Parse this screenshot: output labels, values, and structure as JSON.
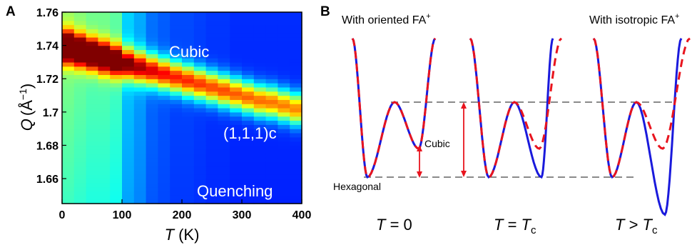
{
  "panel_a": {
    "label": "A",
    "ylabel_italic": "Q",
    "ylabel_unit": "(Å",
    "ylabel_sup": "−1",
    "ylabel_close": ")",
    "xlabel_italic": "T",
    "xlabel_unit": "(K)",
    "text_cubic": "Cubic",
    "text_peak": "(1,1,1)c",
    "text_quenching": "Quenching"
  },
  "panel_b": {
    "label": "B",
    "title_left": "With oriented FA",
    "title_left_sup": "+",
    "title_right": "With isotropic FA",
    "title_right_sup": "+",
    "label_cubic": "Cubic",
    "label_hexagonal": "Hexagonal",
    "cond1_var": "T",
    "cond1_rest": " = 0",
    "cond2_var": "T",
    "cond2_op": " = ",
    "cond2_sym": "T",
    "cond2_sub": "c",
    "cond3_var": "T",
    "cond3_op": " > ",
    "cond3_sym": "T",
    "cond3_sub": "c"
  },
  "colors": {
    "blue_curve": "#1a1adc",
    "red_curve": "#e8141e",
    "arrow": "#e8141e",
    "heatmap_background": "#0a1a9c"
  },
  "chart_data": [
    {
      "type": "heatmap",
      "panel": "A",
      "xlabel": "T (K)",
      "ylabel": "Q (Å−1)",
      "xlim": [
        0,
        400
      ],
      "ylim": [
        1.645,
        1.76
      ],
      "xticks": [
        0,
        100,
        200,
        300,
        400
      ],
      "yticks": [
        1.66,
        1.68,
        1.7,
        1.72,
        1.74,
        1.76
      ],
      "ytick_labels": [
        "1.66",
        "1.68",
        "1.7",
        "1.72",
        "1.74",
        "1.76"
      ],
      "colormap": "jet",
      "temperatures": [
        10,
        30,
        50,
        70,
        90,
        110,
        130,
        150,
        170,
        190,
        210,
        230,
        250,
        270,
        290,
        310,
        330,
        350,
        370,
        390
      ],
      "peak_center_Q": [
        1.739,
        1.737,
        1.735,
        1.733,
        1.731,
        1.729,
        1.727,
        1.725,
        1.723,
        1.721,
        1.719,
        1.717,
        1.715,
        1.713,
        1.711,
        1.709,
        1.707,
        1.706,
        1.704,
        1.702
      ],
      "peak_intensity": [
        1.0,
        0.95,
        0.92,
        0.9,
        0.85,
        0.82,
        0.78,
        0.78,
        0.76,
        0.75,
        0.74,
        0.73,
        0.72,
        0.72,
        0.71,
        0.7,
        0.69,
        0.68,
        0.67,
        0.66
      ],
      "background_level": [
        0.42,
        0.4,
        0.38,
        0.38,
        0.36,
        0.22,
        0.18,
        0.12,
        0.1,
        0.08,
        0.08,
        0.07,
        0.06,
        0.06,
        0.05,
        0.05,
        0.05,
        0.05,
        0.05,
        0.05
      ],
      "annotations": [
        "Cubic",
        "(1,1,1)c",
        "Quenching"
      ]
    },
    {
      "type": "line",
      "panel": "B",
      "xlabel": "",
      "ylabel": "",
      "series_style": "blue solid curve overlaid by red dashed curve",
      "wells": [
        {
          "condition": "T = 0",
          "blue_cubic_min": 0.38,
          "red_cubic_min": 0.38
        },
        {
          "condition": "T = Tc",
          "blue_cubic_min": 0.0,
          "red_cubic_min": 0.38
        },
        {
          "condition": "T > Tc",
          "blue_cubic_min": -0.5,
          "red_cubic_min": 0.38
        }
      ],
      "hexagonal_min": 0.0,
      "barrier_height": 1.0,
      "annotations": [
        "Cubic",
        "Hexagonal"
      ]
    }
  ]
}
